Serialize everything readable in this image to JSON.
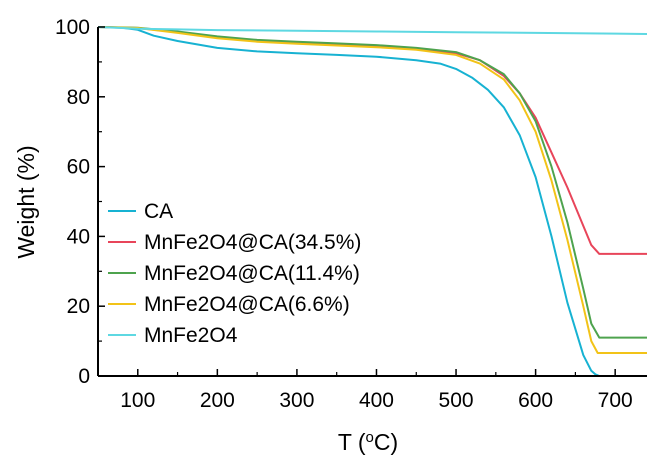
{
  "chart_data": {
    "type": "line",
    "title": "",
    "xlabel": "T (°C)",
    "ylabel": "Weight (%)",
    "xlim": [
      50,
      740
    ],
    "ylim": [
      0,
      100
    ],
    "xticks": [
      100,
      200,
      300,
      400,
      500,
      600,
      700
    ],
    "yticks": [
      0,
      20,
      40,
      60,
      80,
      100
    ],
    "grid": false,
    "legend_position": "left",
    "series": [
      {
        "name": "CA",
        "color": "#17b2d2",
        "x": [
          50,
          80,
          100,
          120,
          150,
          200,
          250,
          300,
          350,
          400,
          450,
          480,
          500,
          520,
          540,
          560,
          580,
          600,
          620,
          640,
          660,
          670,
          675,
          680,
          700,
          740
        ],
        "y": [
          100,
          99.8,
          99.2,
          97.5,
          96,
          94,
          93,
          92.5,
          92,
          91.5,
          90.5,
          89.5,
          88,
          85.5,
          82,
          77,
          69,
          57,
          40,
          21,
          6,
          1.5,
          0.5,
          0,
          0,
          0
        ]
      },
      {
        "name": "MnFe2O4@CA(34.5%)",
        "color": "#e8455a",
        "x": [
          50,
          100,
          150,
          200,
          250,
          300,
          350,
          400,
          450,
          500,
          530,
          560,
          580,
          600,
          620,
          640,
          660,
          670,
          680,
          700,
          740
        ],
        "y": [
          100,
          99.7,
          98.5,
          97,
          96,
          95.5,
          95,
          94.5,
          93.8,
          92.5,
          90.5,
          86,
          81,
          74,
          64,
          54,
          43,
          37.5,
          35,
          35,
          35
        ]
      },
      {
        "name": "MnFe2O4@CA(11.4%)",
        "color": "#4ea34e",
        "x": [
          50,
          100,
          150,
          200,
          250,
          300,
          350,
          400,
          450,
          500,
          530,
          560,
          580,
          600,
          620,
          640,
          660,
          670,
          680,
          700,
          740
        ],
        "y": [
          100,
          99.8,
          98.7,
          97.3,
          96.3,
          95.8,
          95.3,
          94.8,
          94,
          92.8,
          90.5,
          86.5,
          81,
          73,
          60,
          44,
          25,
          15,
          11,
          11,
          11
        ]
      },
      {
        "name": "MnFe2O4@CA(6.6%)",
        "color": "#f2c318",
        "x": [
          50,
          100,
          150,
          200,
          250,
          300,
          350,
          400,
          450,
          500,
          530,
          560,
          580,
          600,
          620,
          640,
          660,
          670,
          678,
          700,
          740
        ],
        "y": [
          100,
          99.7,
          98.3,
          96.8,
          95.8,
          95.2,
          94.7,
          94.2,
          93.5,
          92,
          89.5,
          85,
          79,
          70,
          56,
          39,
          20,
          10,
          6.6,
          6.6,
          6.6
        ]
      },
      {
        "name": "MnFe2O4",
        "color": "#5ed8e2",
        "x": [
          50,
          100,
          150,
          200,
          300,
          400,
          500,
          600,
          700,
          740
        ],
        "y": [
          100,
          99.5,
          99.3,
          99.1,
          98.9,
          98.7,
          98.5,
          98.3,
          98.1,
          98
        ]
      }
    ]
  }
}
